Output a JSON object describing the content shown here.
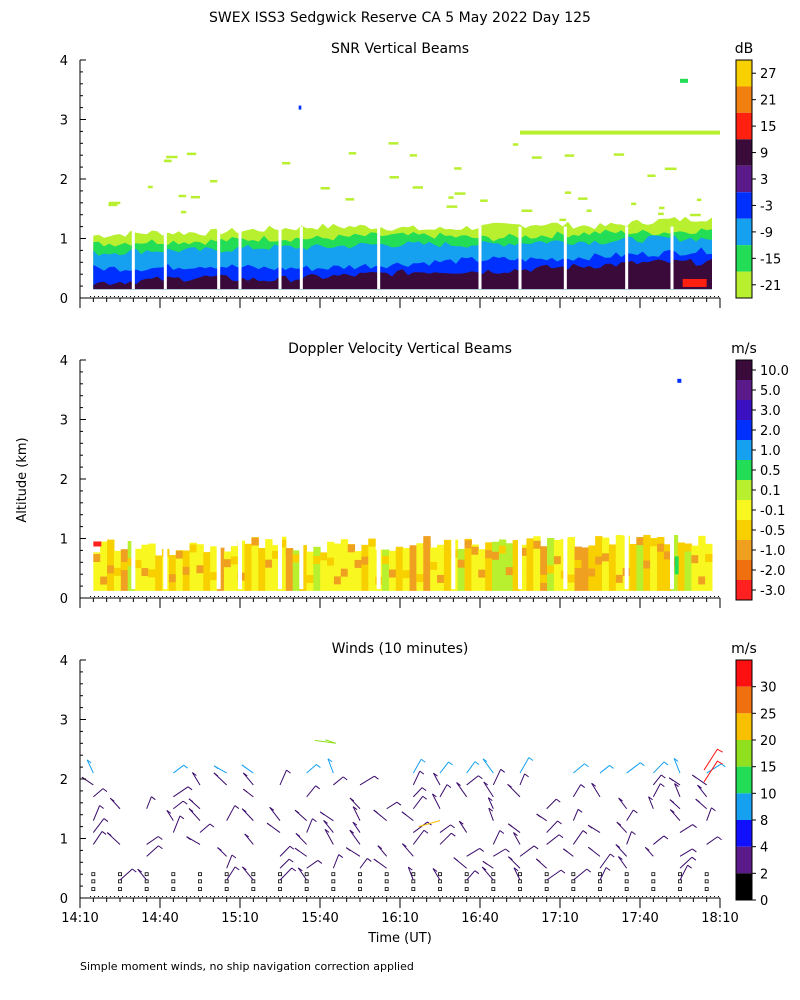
{
  "title": "SWEX ISS3 Sedgwick Reserve CA   5 May 2022 Day 125",
  "footnote": "Simple moment winds, no ship navigation correction applied",
  "colors": {
    "dark_purple": "#3a0a3a",
    "purple": "#5a1a8a",
    "indigo": "#3a10c0",
    "blue": "#0030ff",
    "sky": "#16a0f0",
    "green": "#22dd55",
    "lime": "#b8f030",
    "yellow": "#f8f820",
    "orange": "#f0a020",
    "red": "#ff2020"
  },
  "chart_data": [
    {
      "type": "heatmap",
      "title": "SNR Vertical Beams",
      "ylabel": "Altitude (km)",
      "xlabel": "",
      "ylim": [
        0,
        4
      ],
      "yticks": [
        "0",
        "1",
        "2",
        "3",
        "4"
      ],
      "xlim": [
        0,
        240
      ],
      "colorbar_unit": "dB",
      "colorbar_labels": [
        "27",
        "21",
        "15",
        "9",
        "3",
        "-3",
        "-9",
        "-15",
        "-21"
      ],
      "colorbar_colors": [
        "#f8d000",
        "#f08010",
        "#ff2010",
        "#3a0a3a",
        "#5a1a8a",
        "#0030ff",
        "#16a0f0",
        "#22dd55",
        "#b8f030"
      ],
      "layers": [
        {
          "name": "dark",
          "color": "#3a0a3a",
          "top_km": [
            0.25,
            0.3,
            0.35,
            0.3,
            0.35,
            0.4,
            0.45,
            0.45,
            0.5,
            0.55,
            0.6,
            0.6
          ]
        },
        {
          "name": "blue",
          "color": "#0030ff",
          "top_km": [
            0.5,
            0.5,
            0.55,
            0.5,
            0.5,
            0.55,
            0.6,
            0.65,
            0.65,
            0.7,
            0.75,
            0.8
          ]
        },
        {
          "name": "sky",
          "color": "#16a0f0",
          "top_km": [
            0.75,
            0.8,
            0.8,
            0.85,
            0.85,
            0.9,
            0.9,
            0.9,
            0.95,
            0.95,
            1.0,
            1.0
          ]
        },
        {
          "name": "green",
          "color": "#22dd55",
          "top_km": [
            0.9,
            0.95,
            0.95,
            1.0,
            1.0,
            1.05,
            1.05,
            1.0,
            1.05,
            1.1,
            1.1,
            1.15
          ]
        },
        {
          "name": "lime",
          "color": "#b8f030",
          "top_km": [
            1.05,
            1.1,
            1.1,
            1.15,
            1.2,
            1.2,
            1.15,
            1.2,
            1.25,
            1.2,
            1.3,
            1.35
          ]
        }
      ],
      "features": [
        {
          "t": [
            165,
            240
          ],
          "alt": 2.78,
          "color": "#b8f030"
        },
        {
          "t": [
            225,
            228
          ],
          "alt": 3.65,
          "color": "#22dd55"
        },
        {
          "t": [
            82,
            83
          ],
          "alt": 3.2,
          "color": "#0030ff"
        }
      ]
    },
    {
      "type": "heatmap",
      "title": "Doppler Velocity Vertical Beams",
      "ylabel": "Altitude (km)",
      "xlabel": "",
      "ylim": [
        0,
        4
      ],
      "yticks": [
        "0",
        "1",
        "2",
        "3",
        "4"
      ],
      "xlim": [
        0,
        240
      ],
      "colorbar_unit": "m/s",
      "colorbar_labels": [
        "10.0",
        "5.0",
        "3.0",
        "2.0",
        "1.0",
        "0.5",
        "0.1",
        "-0.1",
        "-0.5",
        "-1.0",
        "-2.0",
        "-3.0"
      ],
      "colorbar_colors": [
        "#3a0a3a",
        "#5a1a8a",
        "#3a10c0",
        "#0030ff",
        "#16a0f0",
        "#22dd55",
        "#b8f030",
        "#f8f820",
        "#f8d000",
        "#f0a020",
        "#f07010",
        "#ff2020"
      ],
      "top_km": [
        1.0,
        0.95,
        1.0,
        1.05,
        1.0,
        1.0,
        1.05,
        1.0,
        1.05,
        1.1,
        1.05,
        1.1
      ],
      "features": [
        {
          "t": [
            224,
            225
          ],
          "alt": 3.65,
          "color": "#0030ff"
        }
      ]
    },
    {
      "type": "scatter",
      "title": "Winds (10 minutes)",
      "ylabel": "Altitude (km)",
      "xlabel": "Time (UT)",
      "ylim": [
        0,
        4
      ],
      "yticks": [
        "0",
        "1",
        "2",
        "3",
        "4"
      ],
      "xlim": [
        0,
        240
      ],
      "xtick_values": [
        0,
        30,
        60,
        90,
        120,
        150,
        180,
        210,
        240
      ],
      "xtick_labels": [
        "14:10",
        "14:40",
        "15:10",
        "15:40",
        "16:10",
        "16:40",
        "17:10",
        "17:40",
        "18:10"
      ],
      "colorbar_unit": "m/s",
      "colorbar_labels": [
        "30",
        "25",
        "20",
        "15",
        "10",
        "8",
        "4",
        "2",
        "0"
      ],
      "colorbar_colors": [
        "#ff1010",
        "#f07010",
        "#f8c000",
        "#90e020",
        "#22dd55",
        "#16a0f0",
        "#1010ff",
        "#5a1a8a",
        "#000000"
      ],
      "barb_times_min": [
        5,
        15,
        25,
        35,
        45,
        55,
        65,
        75,
        85,
        95,
        105,
        115,
        125,
        135,
        145,
        155,
        165,
        175,
        185,
        195,
        205,
        215,
        225,
        235
      ],
      "barb_altitudes_km": [
        0.3,
        0.5,
        0.7,
        0.9,
        1.1,
        1.3,
        1.5,
        1.7,
        1.9,
        2.1
      ]
    }
  ]
}
